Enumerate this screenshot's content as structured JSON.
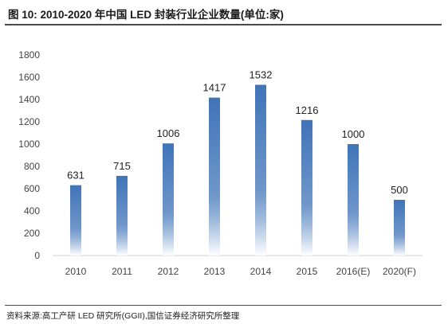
{
  "figure": {
    "title": "图 10:  2010-2020 年中国 LED 封装行业企业数量(单位:家)",
    "source": "资料来源:高工产研 LED 研究所(GGII),国信证券经济研究所整理"
  },
  "colors": {
    "bar_top": "#3f74b8",
    "bar_bottom": "#ffffff",
    "axis": "#d0d0d0"
  },
  "chart_data": {
    "type": "bar",
    "categories": [
      "2010",
      "2011",
      "2012",
      "2013",
      "2014",
      "2015",
      "2016(E)",
      "2020(F)"
    ],
    "values": [
      631,
      715,
      1006,
      1417,
      1532,
      1216,
      1000,
      500
    ],
    "data_labels": [
      "631",
      "715",
      "1006",
      "1417",
      "1532",
      "1216",
      "1000",
      "500"
    ],
    "ylim": [
      0,
      1800
    ],
    "yticks": [
      0,
      200,
      400,
      600,
      800,
      1000,
      1200,
      1400,
      1600,
      1800
    ],
    "grid": false,
    "legend": "none",
    "fill": "gradient"
  }
}
